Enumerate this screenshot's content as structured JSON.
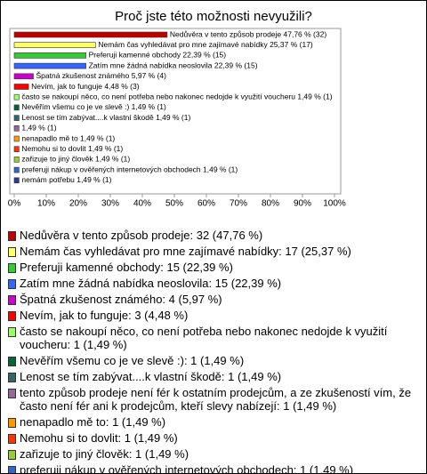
{
  "chart_data": {
    "type": "bar",
    "orientation": "horizontal",
    "title": "Proč jste této možnosti nevyužili?",
    "categories": [
      "Nedůvěra v tento způsob prodeje: 32 (47,76 %)",
      "Nemám čas vyhledávat pro mne zajímavé nabídky: 17 (25,37 %)",
      "Preferuji kamenné obchody: 15 (22,39 %)",
      "Zatím mne žádná nabídka neoslovila: 15 (22,39 %)",
      "Špatná zkušenost známého: 4 (5,97 %)",
      "Nevím, jak to funguje: 3 (4,48 %)",
      "často se nakoupí něco, co není potřeba nebo nakonec nedojde k využití voucheru: 1 (1,49 %)",
      "Nevěřím všemu co je ve slevě :): 1 (1,49 %)",
      "Lenost se tím zabývat....k vlastní škodě: 1 (1,49 %)",
      "tento způsob prodeje není fér k ostatním prodejcům, a ze zkušeností vím, že často není fér ani k prodejcům, kteří slevy nabízejí: 1 (1,49 %)",
      "nenapadlo mě to: 1 (1,49 %)",
      "Nemohu si to dovlit: 1 (1,49 %)",
      "zařizuje to jiný člověk: 1 (1,49 %)",
      "preferuji nákup v ověřených internetových obchodech: 1 (1,49 %)",
      "nemám potřebu: 1 (1,49 %)"
    ],
    "values": [
      47.76,
      25.37,
      22.39,
      22.39,
      5.97,
      4.48,
      1.49,
      1.49,
      1.49,
      1.49,
      1.49,
      1.49,
      1.49,
      1.49,
      1.49
    ],
    "value_labels": [
      "Nedůvěra v tento způsob prodeje 47,76 % (32)",
      "Nemám čas vyhledávat pro mne zajímavé nabídky 25,37 % (17)",
      "Preferuji kamenné obchody 22,39 % (15)",
      "Zatím mne žádná nabídka neoslovila 22,39 % (15)",
      "Špatná zkušenost známého 5,97 % (4)",
      "Nevím, jak to funguje 4,48 % (3)",
      "často se nakoupí něco, co není potřeba nebo nakonec nedojde k využití voucheru 1,49 % (1)",
      "Nevěřím všemu co je ve slevě :) 1,49 % (1)",
      "Lenost se tím zabývat....k vlastní škodě 1,49 % (1)",
      "1,49 % (1)",
      "nenapadlo mě to 1,49 % (1)",
      "Nemohu si to dovlit 1,49 % (1)",
      "zařizuje to jiný člověk 1,49 % (1)",
      "preferuji nákup v ověřených internetových obchodech 1,49 % (1)",
      "nemám potřebu 1,49 % (1)"
    ],
    "colors": [
      "#c00000",
      "#ffff66",
      "#33cc33",
      "#3366ff",
      "#cc00cc",
      "#ff0000",
      "#99ff66",
      "#006633",
      "#336666",
      "#996699",
      "#ff9900",
      "#ff3300",
      "#99cc33",
      "#3366cc",
      "#333399"
    ],
    "xlim": [
      0,
      100
    ],
    "xticks": [
      {
        "value": 0,
        "label": "0%"
      },
      {
        "value": 10,
        "label": "10%"
      },
      {
        "value": 20,
        "label": "20%"
      },
      {
        "value": 30,
        "label": "30%"
      },
      {
        "value": 40,
        "label": "40%"
      },
      {
        "value": 50,
        "label": "50%"
      },
      {
        "value": 60,
        "label": "60%"
      },
      {
        "value": 70,
        "label": "70%"
      },
      {
        "value": 80,
        "label": "80%"
      },
      {
        "value": 90,
        "label": "90%"
      },
      {
        "value": 100,
        "label": "100%"
      }
    ]
  }
}
